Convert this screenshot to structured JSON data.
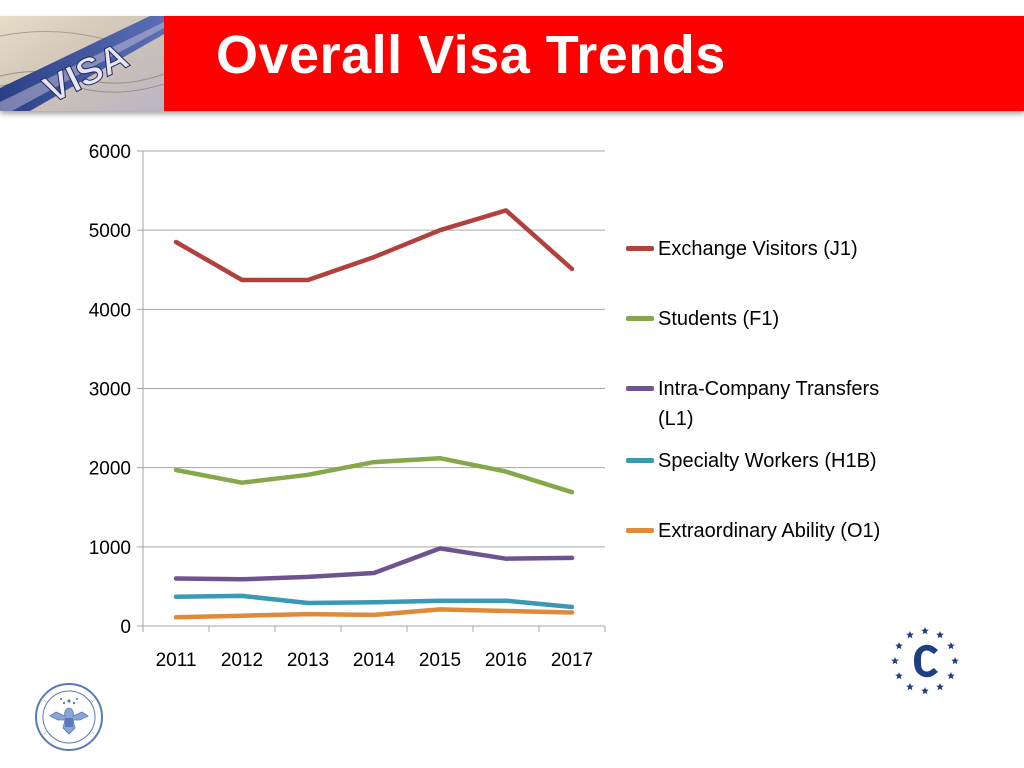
{
  "slide": {
    "title": "Overall Visa Trends",
    "image_text": "VISA",
    "title_bar_color": "#ff0000"
  },
  "chart_data": {
    "type": "line",
    "title": "",
    "xlabel": "",
    "ylabel": "",
    "categories": [
      "2011",
      "2012",
      "2013",
      "2014",
      "2015",
      "2016",
      "2017"
    ],
    "ylim": [
      0,
      6000
    ],
    "yticks": [
      0,
      1000,
      2000,
      3000,
      4000,
      5000,
      6000
    ],
    "grid": "horizontal",
    "legend_position": "right",
    "series": [
      {
        "name": "Exchange Visitors (J1)",
        "color": "#b0413e",
        "values": [
          4850,
          4370,
          4370,
          4660,
          5000,
          5250,
          4510
        ]
      },
      {
        "name": "Students (F1)",
        "color": "#86a84a",
        "values": [
          1970,
          1810,
          1910,
          2070,
          2120,
          1950,
          1690
        ]
      },
      {
        "name": "Intra-Company Transfers (L1)",
        "color": "#6e548f",
        "values": [
          600,
          590,
          620,
          670,
          980,
          850,
          860
        ]
      },
      {
        "name": "Specialty Workers (H1B)",
        "color": "#3a99b5",
        "values": [
          370,
          380,
          290,
          300,
          320,
          320,
          240
        ]
      },
      {
        "name": "Extraordinary Ability (O1)",
        "color": "#de8a3a",
        "values": [
          110,
          130,
          150,
          140,
          210,
          190,
          170
        ]
      }
    ]
  },
  "icons": {
    "header_image": "visa-document-icon",
    "bottom_left": "state-department-seal-icon",
    "bottom_right": "stars-circle-c-logo-icon"
  }
}
